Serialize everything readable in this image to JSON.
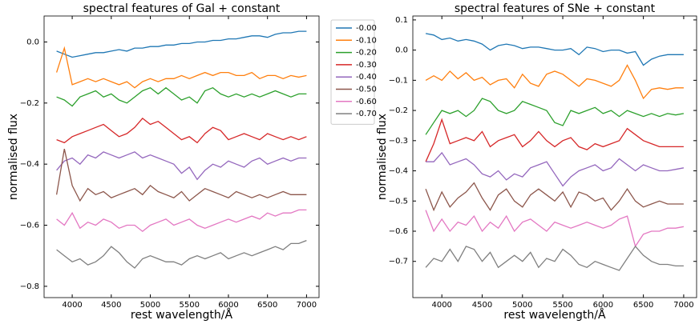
{
  "chart_data": [
    {
      "type": "line",
      "title": "spectral features of Gal + constant",
      "xlabel": "rest wavelength/Å",
      "ylabel": "normalised flux",
      "x": [
        3800,
        3900,
        4000,
        4100,
        4200,
        4300,
        4400,
        4500,
        4600,
        4700,
        4800,
        4900,
        5000,
        5100,
        5200,
        5300,
        5400,
        5500,
        5600,
        5700,
        5800,
        5900,
        6000,
        6100,
        6200,
        6300,
        6400,
        6500,
        6600,
        6700,
        6800,
        6900,
        7000
      ],
      "xlim": [
        3640,
        7160
      ],
      "xticks": [
        4000,
        4500,
        5000,
        5500,
        6000,
        6500,
        7000
      ],
      "ylim": [
        -0.837,
        0.085
      ],
      "yticks": [
        {
          "value": 0,
          "label": "0.0"
        },
        {
          "value": -0.2,
          "label": "−0.2"
        },
        {
          "value": -0.4,
          "label": "−0.4"
        },
        {
          "value": -0.6,
          "label": "−0.6"
        },
        {
          "value": -0.8,
          "label": "−0.8"
        }
      ],
      "legend": "outside-right",
      "series": [
        {
          "name": "-0.00",
          "color": "#1f77b4",
          "values": [
            -0.03,
            -0.04,
            -0.05,
            -0.045,
            -0.04,
            -0.035,
            -0.035,
            -0.03,
            -0.025,
            -0.03,
            -0.02,
            -0.02,
            -0.015,
            -0.015,
            -0.01,
            -0.01,
            -0.005,
            -0.005,
            0.0,
            0.0,
            0.005,
            0.005,
            0.01,
            0.01,
            0.015,
            0.02,
            0.02,
            0.015,
            0.025,
            0.03,
            0.03,
            0.035,
            0.035
          ]
        },
        {
          "name": "-0.10",
          "color": "#ff7f0e",
          "values": [
            -0.1,
            -0.02,
            -0.14,
            -0.13,
            -0.12,
            -0.13,
            -0.12,
            -0.13,
            -0.14,
            -0.13,
            -0.15,
            -0.13,
            -0.12,
            -0.13,
            -0.12,
            -0.12,
            -0.11,
            -0.12,
            -0.11,
            -0.1,
            -0.11,
            -0.1,
            -0.1,
            -0.11,
            -0.11,
            -0.1,
            -0.12,
            -0.11,
            -0.11,
            -0.12,
            -0.11,
            -0.115,
            -0.11
          ]
        },
        {
          "name": "-0.20",
          "color": "#2ca02c",
          "values": [
            -0.18,
            -0.19,
            -0.21,
            -0.18,
            -0.17,
            -0.16,
            -0.18,
            -0.17,
            -0.19,
            -0.2,
            -0.18,
            -0.16,
            -0.15,
            -0.17,
            -0.15,
            -0.17,
            -0.19,
            -0.18,
            -0.2,
            -0.16,
            -0.15,
            -0.17,
            -0.18,
            -0.17,
            -0.18,
            -0.17,
            -0.18,
            -0.17,
            -0.16,
            -0.17,
            -0.18,
            -0.17,
            -0.17
          ]
        },
        {
          "name": "-0.30",
          "color": "#d62728",
          "values": [
            -0.32,
            -0.33,
            -0.31,
            -0.3,
            -0.29,
            -0.28,
            -0.27,
            -0.29,
            -0.31,
            -0.3,
            -0.28,
            -0.25,
            -0.27,
            -0.26,
            -0.28,
            -0.3,
            -0.32,
            -0.31,
            -0.33,
            -0.3,
            -0.28,
            -0.29,
            -0.32,
            -0.31,
            -0.3,
            -0.31,
            -0.32,
            -0.3,
            -0.31,
            -0.32,
            -0.31,
            -0.32,
            -0.31
          ]
        },
        {
          "name": "-0.40",
          "color": "#9467bd",
          "values": [
            -0.42,
            -0.39,
            -0.38,
            -0.4,
            -0.37,
            -0.38,
            -0.36,
            -0.37,
            -0.38,
            -0.37,
            -0.36,
            -0.38,
            -0.37,
            -0.38,
            -0.39,
            -0.4,
            -0.43,
            -0.41,
            -0.45,
            -0.42,
            -0.4,
            -0.41,
            -0.39,
            -0.4,
            -0.41,
            -0.39,
            -0.38,
            -0.4,
            -0.39,
            -0.38,
            -0.39,
            -0.38,
            -0.38
          ]
        },
        {
          "name": "-0.50",
          "color": "#8c564b",
          "values": [
            -0.5,
            -0.35,
            -0.47,
            -0.52,
            -0.48,
            -0.5,
            -0.49,
            -0.51,
            -0.5,
            -0.49,
            -0.48,
            -0.5,
            -0.47,
            -0.49,
            -0.5,
            -0.51,
            -0.49,
            -0.52,
            -0.5,
            -0.48,
            -0.49,
            -0.5,
            -0.51,
            -0.49,
            -0.5,
            -0.51,
            -0.5,
            -0.51,
            -0.5,
            -0.49,
            -0.5,
            -0.5,
            -0.5
          ]
        },
        {
          "name": "-0.60",
          "color": "#e377c2",
          "values": [
            -0.58,
            -0.6,
            -0.56,
            -0.61,
            -0.59,
            -0.6,
            -0.58,
            -0.59,
            -0.61,
            -0.6,
            -0.6,
            -0.62,
            -0.6,
            -0.59,
            -0.58,
            -0.6,
            -0.59,
            -0.58,
            -0.6,
            -0.61,
            -0.6,
            -0.59,
            -0.58,
            -0.59,
            -0.58,
            -0.57,
            -0.58,
            -0.56,
            -0.57,
            -0.56,
            -0.56,
            -0.55,
            -0.55
          ]
        },
        {
          "name": "-0.70",
          "color": "#7f7f7f",
          "values": [
            -0.68,
            -0.7,
            -0.72,
            -0.71,
            -0.73,
            -0.72,
            -0.7,
            -0.67,
            -0.69,
            -0.72,
            -0.74,
            -0.71,
            -0.7,
            -0.71,
            -0.72,
            -0.72,
            -0.73,
            -0.71,
            -0.7,
            -0.71,
            -0.7,
            -0.69,
            -0.71,
            -0.7,
            -0.69,
            -0.7,
            -0.69,
            -0.68,
            -0.67,
            -0.68,
            -0.66,
            -0.66,
            -0.65
          ]
        }
      ]
    },
    {
      "type": "line",
      "title": "spectral features of SNe + constant",
      "xlabel": "rest wavelength/Å",
      "ylabel": "normalised flux",
      "x": [
        3800,
        3900,
        4000,
        4100,
        4200,
        4300,
        4400,
        4500,
        4600,
        4700,
        4800,
        4900,
        5000,
        5100,
        5200,
        5300,
        5400,
        5500,
        5600,
        5700,
        5800,
        5900,
        6000,
        6100,
        6200,
        6300,
        6400,
        6500,
        6600,
        6700,
        6800,
        6900,
        7000
      ],
      "xlim": [
        3640,
        7160
      ],
      "xticks": [
        4000,
        4500,
        5000,
        5500,
        6000,
        6500,
        7000
      ],
      "ylim": [
        -0.82,
        0.113
      ],
      "yticks": [
        0.1,
        {
          "value": 0,
          "label": "0.0"
        },
        {
          "value": -0.1,
          "label": "−0.1"
        },
        {
          "value": -0.2,
          "label": "−0.2"
        },
        {
          "value": -0.3,
          "label": "−0.3"
        },
        {
          "value": -0.4,
          "label": "−0.4"
        },
        {
          "value": -0.5,
          "label": "−0.5"
        },
        {
          "value": -0.6,
          "label": "−0.6"
        },
        {
          "value": -0.7,
          "label": "−0.7"
        }
      ],
      "series": [
        {
          "color": "#1f77b4",
          "values": [
            0.055,
            0.05,
            0.035,
            0.04,
            0.03,
            0.035,
            0.03,
            0.02,
            0.0,
            0.015,
            0.02,
            0.015,
            0.005,
            0.01,
            0.01,
            0.005,
            0.0,
            0.0,
            0.005,
            -0.015,
            0.01,
            0.005,
            -0.005,
            0.0,
            0.0,
            -0.01,
            -0.005,
            -0.05,
            -0.03,
            -0.02,
            -0.015,
            -0.015,
            -0.015
          ]
        },
        {
          "color": "#ff7f0e",
          "values": [
            -0.1,
            -0.085,
            -0.1,
            -0.07,
            -0.095,
            -0.075,
            -0.1,
            -0.09,
            -0.115,
            -0.1,
            -0.095,
            -0.125,
            -0.08,
            -0.11,
            -0.12,
            -0.08,
            -0.07,
            -0.08,
            -0.1,
            -0.12,
            -0.095,
            -0.1,
            -0.11,
            -0.12,
            -0.1,
            -0.05,
            -0.1,
            -0.16,
            -0.13,
            -0.125,
            -0.13,
            -0.125,
            -0.125
          ]
        },
        {
          "color": "#2ca02c",
          "values": [
            -0.28,
            -0.24,
            -0.2,
            -0.21,
            -0.2,
            -0.22,
            -0.2,
            -0.16,
            -0.17,
            -0.2,
            -0.21,
            -0.2,
            -0.17,
            -0.18,
            -0.19,
            -0.2,
            -0.24,
            -0.25,
            -0.2,
            -0.21,
            -0.2,
            -0.19,
            -0.21,
            -0.2,
            -0.22,
            -0.2,
            -0.21,
            -0.22,
            -0.21,
            -0.22,
            -0.21,
            -0.215,
            -0.21
          ]
        },
        {
          "color": "#d62728",
          "values": [
            -0.37,
            -0.31,
            -0.23,
            -0.31,
            -0.3,
            -0.29,
            -0.3,
            -0.27,
            -0.32,
            -0.3,
            -0.29,
            -0.28,
            -0.32,
            -0.3,
            -0.27,
            -0.3,
            -0.32,
            -0.3,
            -0.29,
            -0.32,
            -0.33,
            -0.31,
            -0.32,
            -0.31,
            -0.3,
            -0.26,
            -0.28,
            -0.3,
            -0.31,
            -0.32,
            -0.32,
            -0.32,
            -0.32
          ]
        },
        {
          "color": "#9467bd",
          "values": [
            -0.37,
            -0.37,
            -0.34,
            -0.38,
            -0.37,
            -0.36,
            -0.38,
            -0.41,
            -0.42,
            -0.4,
            -0.43,
            -0.41,
            -0.42,
            -0.39,
            -0.38,
            -0.37,
            -0.41,
            -0.45,
            -0.42,
            -0.4,
            -0.39,
            -0.38,
            -0.4,
            -0.39,
            -0.36,
            -0.38,
            -0.4,
            -0.38,
            -0.39,
            -0.4,
            -0.4,
            -0.395,
            -0.39
          ]
        },
        {
          "color": "#8c564b",
          "values": [
            -0.46,
            -0.53,
            -0.47,
            -0.52,
            -0.49,
            -0.47,
            -0.44,
            -0.49,
            -0.53,
            -0.48,
            -0.46,
            -0.5,
            -0.52,
            -0.48,
            -0.46,
            -0.48,
            -0.5,
            -0.47,
            -0.52,
            -0.47,
            -0.48,
            -0.5,
            -0.49,
            -0.53,
            -0.5,
            -0.46,
            -0.5,
            -0.52,
            -0.51,
            -0.5,
            -0.51,
            -0.51,
            -0.51
          ]
        },
        {
          "color": "#e377c2",
          "values": [
            -0.53,
            -0.6,
            -0.56,
            -0.6,
            -0.57,
            -0.58,
            -0.55,
            -0.6,
            -0.57,
            -0.59,
            -0.55,
            -0.6,
            -0.57,
            -0.56,
            -0.58,
            -0.6,
            -0.57,
            -0.58,
            -0.59,
            -0.58,
            -0.57,
            -0.58,
            -0.59,
            -0.58,
            -0.56,
            -0.55,
            -0.65,
            -0.61,
            -0.6,
            -0.6,
            -0.59,
            -0.59,
            -0.585
          ]
        },
        {
          "color": "#7f7f7f",
          "values": [
            -0.72,
            -0.69,
            -0.7,
            -0.66,
            -0.7,
            -0.65,
            -0.66,
            -0.7,
            -0.67,
            -0.72,
            -0.7,
            -0.68,
            -0.7,
            -0.67,
            -0.72,
            -0.69,
            -0.7,
            -0.66,
            -0.68,
            -0.71,
            -0.72,
            -0.7,
            -0.71,
            -0.72,
            -0.73,
            -0.69,
            -0.65,
            -0.68,
            -0.7,
            -0.71,
            -0.71,
            -0.715,
            -0.715
          ]
        }
      ]
    }
  ]
}
